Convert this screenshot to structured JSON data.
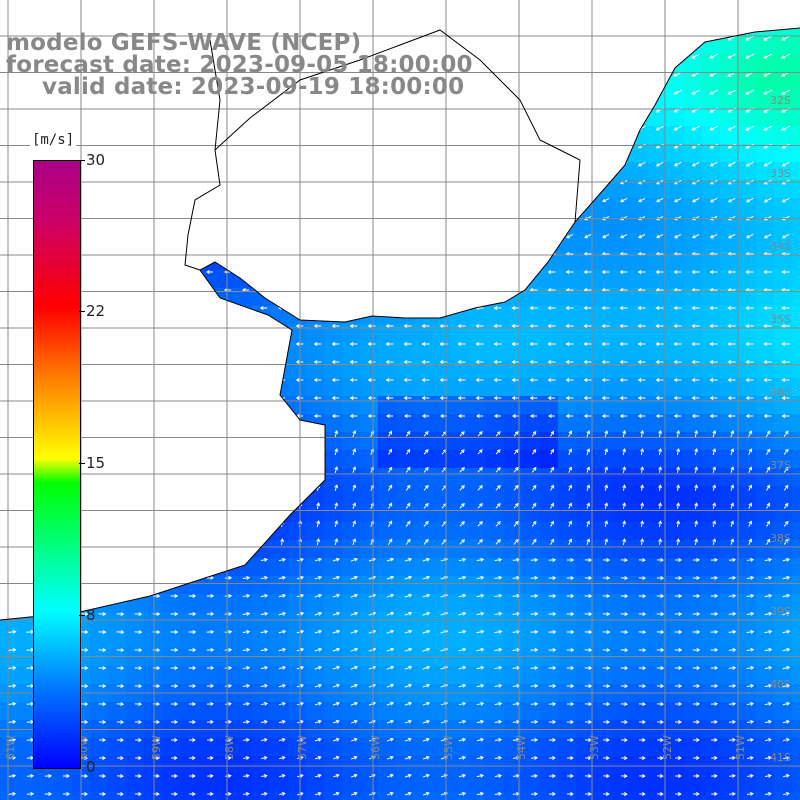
{
  "title": {
    "line1": "modelo GEFS-WAVE (NCEP)",
    "line2": "forecast date: 2023-09-05 18:00:00",
    "line3": "valid date: 2023-09-19 18:00:00"
  },
  "colorbar": {
    "unit": "[m/s]",
    "labels": [
      "30",
      "22",
      "15",
      "8",
      "0"
    ],
    "values": [
      30,
      22,
      15,
      8,
      0
    ],
    "colors": [
      "#0000ff",
      "#0080ff",
      "#00ffff",
      "#00ff00",
      "#ffff00",
      "#ff8000",
      "#ff0000",
      "#cc0066"
    ]
  },
  "map": {
    "lat_labels": [
      "32S",
      "33S",
      "34S",
      "35S",
      "36S",
      "37S",
      "38S",
      "39S",
      "40S",
      "41S"
    ],
    "lon_labels": [
      "61W",
      "60W",
      "59W",
      "58W",
      "57W",
      "56W",
      "55W",
      "54W",
      "53W",
      "52W",
      "51W"
    ],
    "land_color": "#ffffff",
    "grid_color": "#888888",
    "coast_color": "#000000"
  }
}
